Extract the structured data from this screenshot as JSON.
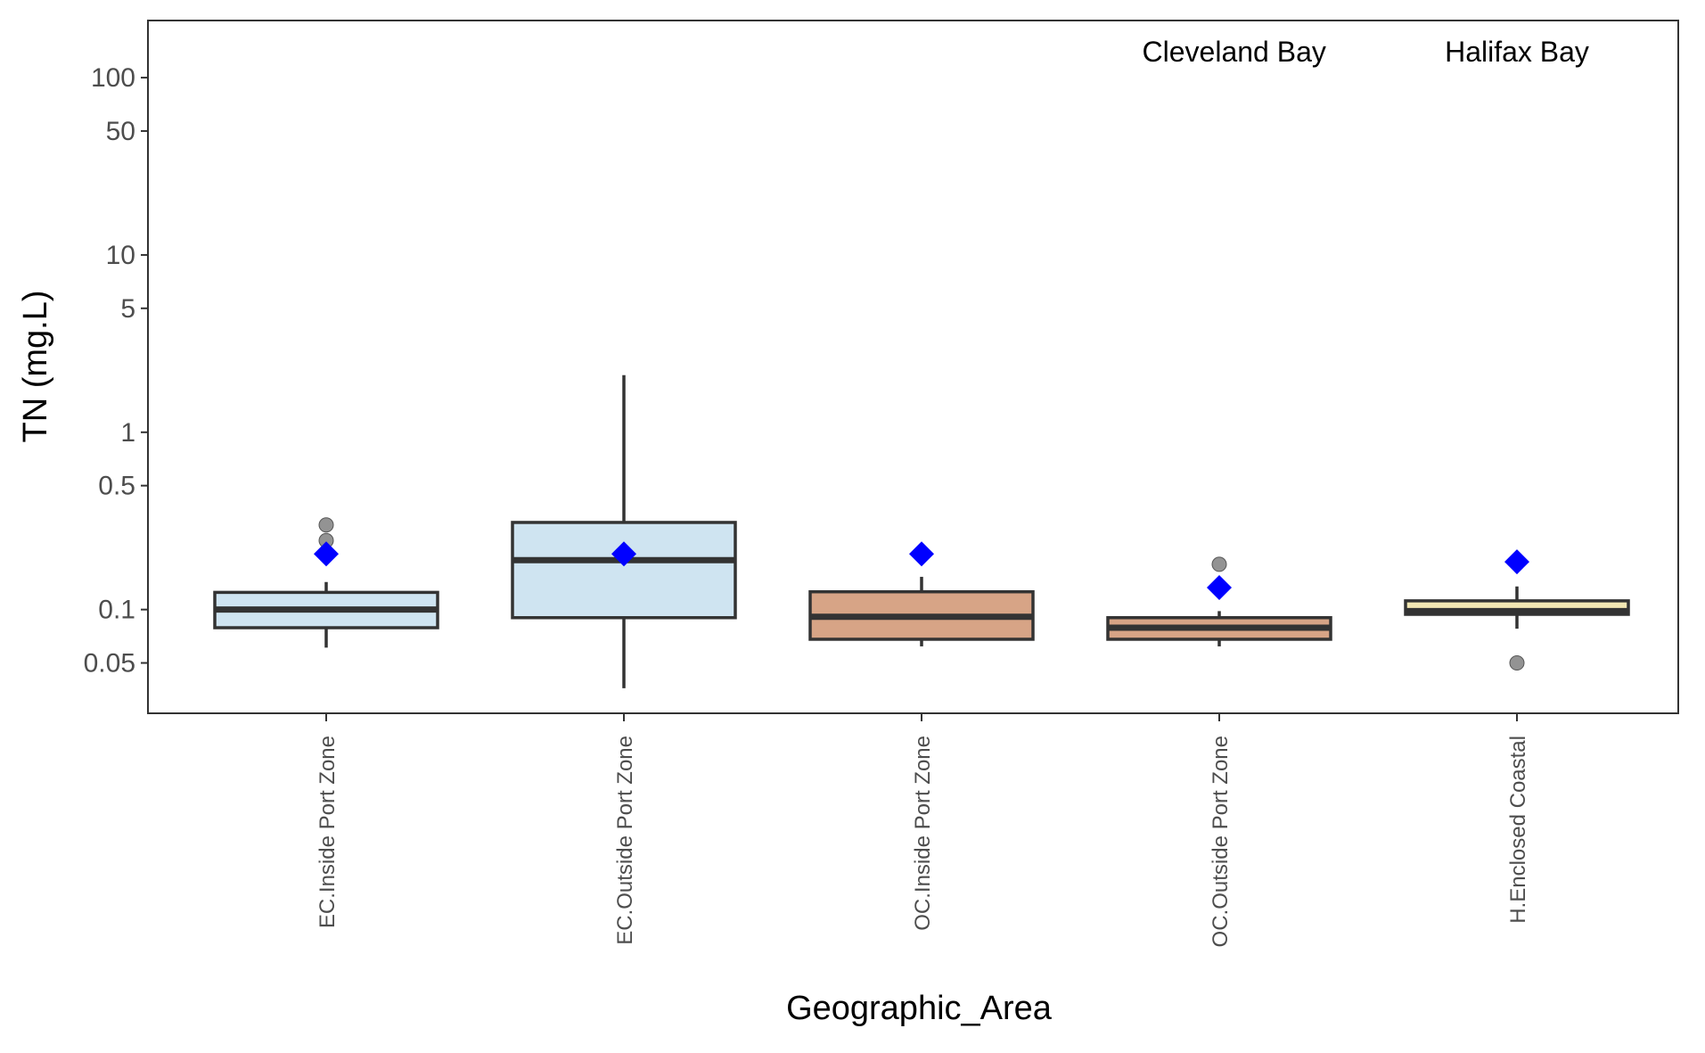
{
  "chart_data": {
    "type": "box",
    "xlabel": "Geographic_Area",
    "ylabel": "TN (mg.L)",
    "yscale": "log",
    "ylim": [
      0.026,
      210
    ],
    "yticks": [
      {
        "value": 100,
        "label": "100"
      },
      {
        "value": 50,
        "label": "50"
      },
      {
        "value": 10,
        "label": "10"
      },
      {
        "value": 5,
        "label": "5"
      },
      {
        "value": 1,
        "label": "1"
      },
      {
        "value": 0.5,
        "label": "0.5"
      },
      {
        "value": 0.1,
        "label": "0.1"
      },
      {
        "value": 0.05,
        "label": "0.05"
      }
    ],
    "grid": false,
    "legend": "none",
    "annotations": [
      {
        "text": "Cleveland Bay",
        "x_center": 4.05,
        "y": 140
      },
      {
        "text": "Halifax Bay",
        "x_center": 5.0,
        "y": 140
      }
    ],
    "categories": [
      "EC.Inside Port Zone",
      "EC.Outside Port Zone",
      "OC.Inside Port Zone",
      "OC.Outside Port Zone",
      "H.Enclosed Coastal"
    ],
    "boxes": [
      {
        "category": "EC.Inside Port Zone",
        "whisker_low": 0.061,
        "q1": 0.079,
        "median": 0.1,
        "q3": 0.125,
        "whisker_high": 0.143,
        "mean": 0.206,
        "outliers": [
          0.3,
          0.245
        ],
        "fill": "#cfe4f1",
        "median_color": "#333333"
      },
      {
        "category": "EC.Outside Port Zone",
        "whisker_low": 0.036,
        "q1": 0.09,
        "median": 0.19,
        "q3": 0.31,
        "whisker_high": 2.1,
        "mean": 0.206,
        "outliers": [],
        "fill": "#cfe4f1",
        "median_color": "#333333"
      },
      {
        "category": "OC.Inside Port Zone",
        "whisker_low": 0.062,
        "q1": 0.068,
        "median": 0.091,
        "q3": 0.126,
        "whisker_high": 0.153,
        "mean": 0.206,
        "outliers": [],
        "fill": "#d7a486",
        "median_color": "#333333"
      },
      {
        "category": "OC.Outside Port Zone",
        "whisker_low": 0.062,
        "q1": 0.068,
        "median": 0.079,
        "q3": 0.09,
        "whisker_high": 0.098,
        "mean": 0.133,
        "outliers": [
          0.18
        ],
        "fill": "#d7a486",
        "median_color": "#333333"
      },
      {
        "category": "H.Enclosed Coastal",
        "whisker_low": 0.078,
        "q1": 0.094,
        "median": 0.098,
        "q3": 0.112,
        "whisker_high": 0.135,
        "mean": 0.186,
        "outliers": [
          0.05
        ],
        "fill": "#f2e7b3",
        "median_color": "#333333"
      }
    ],
    "colors": {
      "mean_marker": "#0000ff",
      "outlier": "#808080",
      "box_stroke": "#333333"
    }
  }
}
